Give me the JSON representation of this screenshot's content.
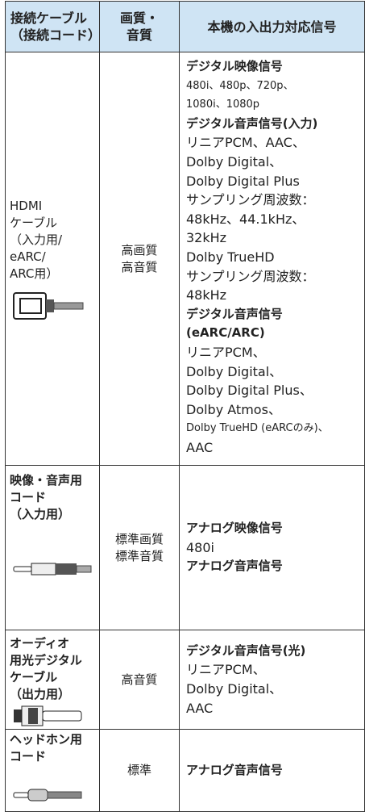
{
  "header": [
    [
      "接続ケーブル",
      "（接続コード）"
    ],
    [
      "画質・",
      "音質"
    ],
    [
      "本機の入出力対応信号"
    ]
  ],
  "rows": [
    {
      "cable": [
        "HDMI",
        "ケーブル",
        "（入力用/",
        "eARC/",
        "ARC用）"
      ],
      "quality": [
        "高画質",
        "高音質"
      ],
      "signals": [
        {
          "text": "デジタル映像信号",
          "style": "bold"
        },
        {
          "text": "480i、480p、720p、",
          "style": "small"
        },
        {
          "text": "1080i、1080p",
          "style": "small"
        },
        {
          "text": "デジタル音声信号(入力)",
          "style": "bold"
        },
        {
          "text": "リニアPCM、AAC、",
          "style": "normal"
        },
        {
          "text": "Dolby Digital、",
          "style": "normal"
        },
        {
          "text": "Dolby Digital Plus",
          "style": "normal"
        },
        {
          "text": "サンプリング周波数：",
          "style": "normal"
        },
        {
          "text": "48kHz、44.1kHz、",
          "style": "normal"
        },
        {
          "text": "32kHz",
          "style": "normal"
        },
        {
          "text": "Dolby TrueHD",
          "style": "normal"
        },
        {
          "text": "サンプリング周波数：",
          "style": "normal"
        },
        {
          "text": "48kHz",
          "style": "normal"
        },
        {
          "text": "デジタル音声信号",
          "style": "bold"
        },
        {
          "text": "(eARC/ARC)",
          "style": "bold"
        },
        {
          "text": "リニアPCM、",
          "style": "normal"
        },
        {
          "text": "Dolby Digital、",
          "style": "normal"
        },
        {
          "text": "Dolby Digital Plus、",
          "style": "normal"
        },
        {
          "text": "Dolby Atmos、",
          "style": "normal"
        },
        {
          "text": "Dolby TrueHD (eARCのみ)、",
          "style": "small"
        },
        {
          "text": "AAC",
          "style": "normal"
        }
      ]
    },
    {
      "cable": [
        "映像・音声用",
        "コード",
        "（入力用）"
      ],
      "quality": [
        "標準画質",
        "標準音質"
      ],
      "signals": [
        {
          "text": "アナログ映像信号",
          "style": "bold"
        },
        {
          "text": "480i",
          "style": "normal"
        },
        {
          "text": "アナログ音声信号",
          "style": "bold"
        }
      ]
    },
    {
      "cable": [
        "オーディオ",
        "用光デジタル",
        "ケーブル",
        "（出力用）"
      ],
      "quality": [
        "高音質"
      ],
      "signals": [
        {
          "text": "デジタル音声信号(光)",
          "style": "bold"
        },
        {
          "text": "リニアPCM、",
          "style": "normal"
        },
        {
          "text": "Dolby Digital、",
          "style": "normal"
        },
        {
          "text": "AAC",
          "style": "normal"
        }
      ]
    },
    {
      "cable": [
        "ヘッドホン用",
        "コード"
      ],
      "quality": [
        "標準"
      ],
      "signals": [
        {
          "text": "アナログ音声信号",
          "style": "bold"
        }
      ]
    }
  ]
}
